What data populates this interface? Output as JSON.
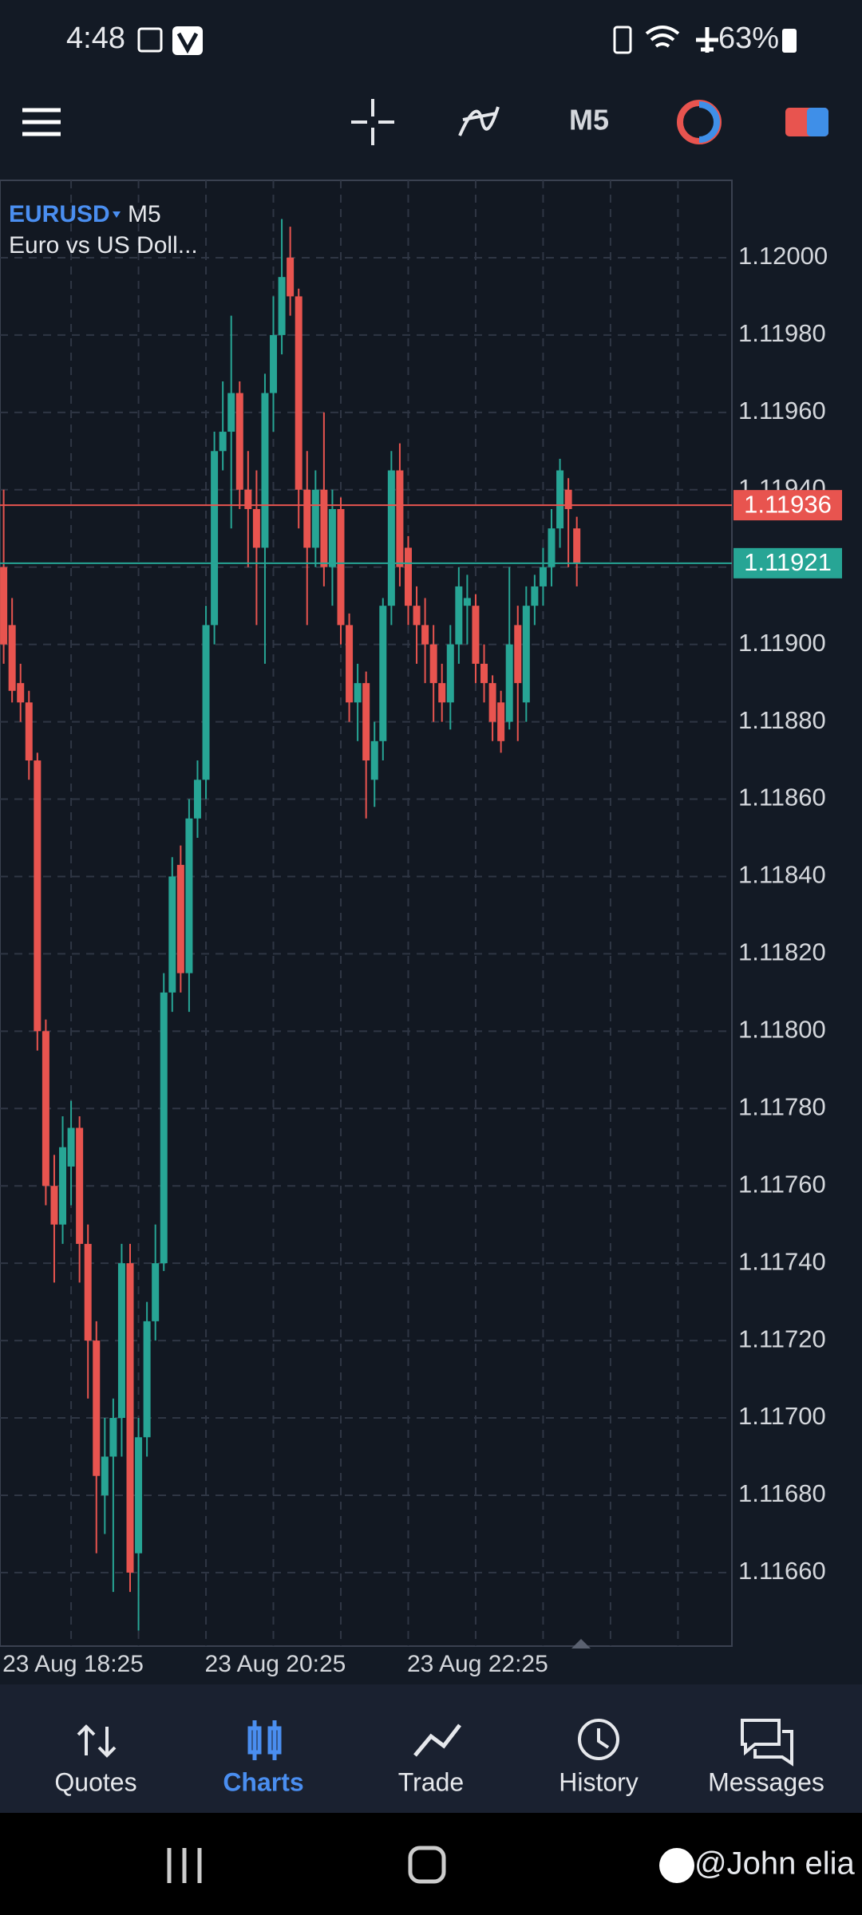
{
  "status_bar": {
    "time": "4:48",
    "battery": "63%"
  },
  "toolbar": {
    "timeframe": "M5"
  },
  "chart_data": {
    "type": "candlestick",
    "symbol": "EURUSD",
    "timeframe": "M5",
    "description": "Euro vs US Doll...",
    "categories": [
      null,
      null,
      null,
      null,
      null,
      null,
      null,
      null,
      "23 Aug 18:25",
      null,
      null,
      null,
      null,
      null,
      null,
      null,
      null,
      null,
      null,
      null,
      null,
      null,
      null,
      null,
      null,
      null,
      null,
      null,
      null,
      null,
      null,
      null,
      "23 Aug 20:25",
      null,
      null,
      null,
      null,
      null,
      null,
      null,
      null,
      null,
      null,
      null,
      null,
      null,
      null,
      null,
      null,
      null,
      null,
      null,
      null,
      null,
      null,
      null,
      "23 Aug 22:25",
      null,
      null,
      null,
      null,
      null,
      null,
      null,
      null,
      null,
      null,
      null,
      null
    ],
    "open": [
      1.1192,
      1.11905,
      1.1189,
      1.11885,
      1.1187,
      1.118,
      1.1176,
      1.1175,
      1.11765,
      1.11775,
      1.11745,
      1.1172,
      1.1168,
      1.1169,
      1.117,
      1.1174,
      1.11665,
      1.11695,
      1.11725,
      1.1174,
      1.1181,
      1.11843,
      1.11815,
      1.11855,
      1.11865,
      1.11905,
      1.1195,
      1.11955,
      1.11965,
      1.1194,
      1.11935,
      1.11925,
      1.11965,
      1.1198,
      1.12,
      1.1199,
      1.1194,
      1.11925,
      1.1194,
      1.1192,
      1.11935,
      1.11905,
      1.11885,
      1.1189,
      1.11865,
      1.11875,
      1.1191,
      1.11945,
      1.11925,
      1.1191,
      1.11905,
      1.119,
      1.1189,
      1.11885,
      1.119,
      1.1191,
      1.1191,
      1.11895,
      1.1189,
      1.11885,
      1.1188,
      1.11905,
      1.11885,
      1.1191,
      1.11915,
      1.1192,
      1.1193,
      1.1194,
      1.1193
    ],
    "high": [
      1.1194,
      1.11912,
      1.11895,
      1.11888,
      1.11872,
      1.11803,
      1.11768,
      1.11778,
      1.11782,
      1.11778,
      1.1175,
      1.11725,
      1.117,
      1.11705,
      1.11745,
      1.11745,
      1.117,
      1.1173,
      1.1175,
      1.11815,
      1.11845,
      1.11848,
      1.1186,
      1.1187,
      1.1191,
      1.11955,
      1.11968,
      1.11985,
      1.11968,
      1.1195,
      1.11945,
      1.1197,
      1.1199,
      1.1201,
      1.12008,
      1.11992,
      1.1195,
      1.11945,
      1.1196,
      1.1194,
      1.11938,
      1.11908,
      1.11895,
      1.11893,
      1.1188,
      1.11912,
      1.1195,
      1.11952,
      1.11928,
      1.11915,
      1.11912,
      1.11905,
      1.11895,
      1.11905,
      1.1192,
      1.11918,
      1.11913,
      1.119,
      1.11892,
      1.11888,
      1.1192,
      1.1191,
      1.11915,
      1.11918,
      1.11925,
      1.11935,
      1.11948,
      1.11943,
      1.11933
    ],
    "low": [
      1.11895,
      1.11885,
      1.1188,
      1.11865,
      1.11795,
      1.11755,
      1.11735,
      1.11745,
      1.11755,
      1.11735,
      1.11705,
      1.11665,
      1.1167,
      1.11655,
      1.1169,
      1.11655,
      1.11645,
      1.1169,
      1.1172,
      1.11738,
      1.11805,
      1.1181,
      1.11805,
      1.1185,
      1.1186,
      1.119,
      1.11945,
      1.1193,
      1.11935,
      1.1192,
      1.11905,
      1.11895,
      1.11955,
      1.11975,
      1.11985,
      1.1193,
      1.11905,
      1.1192,
      1.11915,
      1.1191,
      1.119,
      1.1188,
      1.11875,
      1.11855,
      1.11858,
      1.1187,
      1.11905,
      1.11915,
      1.11905,
      1.11895,
      1.1189,
      1.1188,
      1.1188,
      1.11878,
      1.11895,
      1.119,
      1.1189,
      1.11885,
      1.11875,
      1.11872,
      1.11878,
      1.11875,
      1.1188,
      1.11905,
      1.1191,
      1.11915,
      1.11925,
      1.1192,
      1.11915
    ],
    "close": [
      1.119,
      1.11888,
      1.11885,
      1.1187,
      1.118,
      1.1176,
      1.1175,
      1.1177,
      1.11775,
      1.11745,
      1.1172,
      1.11685,
      1.1169,
      1.117,
      1.1174,
      1.1166,
      1.11695,
      1.11725,
      1.1174,
      1.1181,
      1.1184,
      1.11815,
      1.11855,
      1.11865,
      1.11905,
      1.1195,
      1.11955,
      1.11965,
      1.1194,
      1.11935,
      1.11925,
      1.11965,
      1.1198,
      1.11995,
      1.1199,
      1.1194,
      1.11925,
      1.1194,
      1.1192,
      1.11935,
      1.11905,
      1.11885,
      1.1189,
      1.1187,
      1.11875,
      1.1191,
      1.11945,
      1.1192,
      1.1191,
      1.11905,
      1.119,
      1.1189,
      1.11885,
      1.119,
      1.11915,
      1.11912,
      1.11895,
      1.1189,
      1.1188,
      1.11875,
      1.119,
      1.1189,
      1.1191,
      1.11915,
      1.1192,
      1.1193,
      1.11945,
      1.11935,
      1.11921
    ],
    "up_color": "#27a595",
    "down_color": "#e8544f",
    "ylim": [
      1.11641,
      1.1202
    ],
    "yticks": [
      {
        "value": 1.1166,
        "label": "1.11660"
      },
      {
        "value": 1.1168,
        "label": "1.11680"
      },
      {
        "value": 1.117,
        "label": "1.11700"
      },
      {
        "value": 1.1172,
        "label": "1.11720"
      },
      {
        "value": 1.1174,
        "label": "1.11740"
      },
      {
        "value": 1.1176,
        "label": "1.11760"
      },
      {
        "value": 1.1178,
        "label": "1.11780"
      },
      {
        "value": 1.118,
        "label": "1.11800"
      },
      {
        "value": 1.1182,
        "label": "1.11820"
      },
      {
        "value": 1.1184,
        "label": "1.11840"
      },
      {
        "value": 1.1186,
        "label": "1.11860"
      },
      {
        "value": 1.1188,
        "label": "1.11880"
      },
      {
        "value": 1.119,
        "label": "1.11900"
      },
      {
        "value": 1.1192,
        "label": "1.11920"
      },
      {
        "value": 1.1194,
        "label": "1.11940"
      },
      {
        "value": 1.1196,
        "label": "1.11960"
      },
      {
        "value": 1.1198,
        "label": "1.11980"
      },
      {
        "value": 1.12,
        "label": "1.12000"
      }
    ],
    "grid": true,
    "ask": {
      "value": 1.11936,
      "color": "#e8544f"
    },
    "bid": {
      "value": 1.11921,
      "color": "#27a595"
    }
  },
  "nav": {
    "tabs": [
      "Quotes",
      "Charts",
      "Trade",
      "History",
      "Messages"
    ],
    "active": 1
  },
  "watermark": "@John elia"
}
